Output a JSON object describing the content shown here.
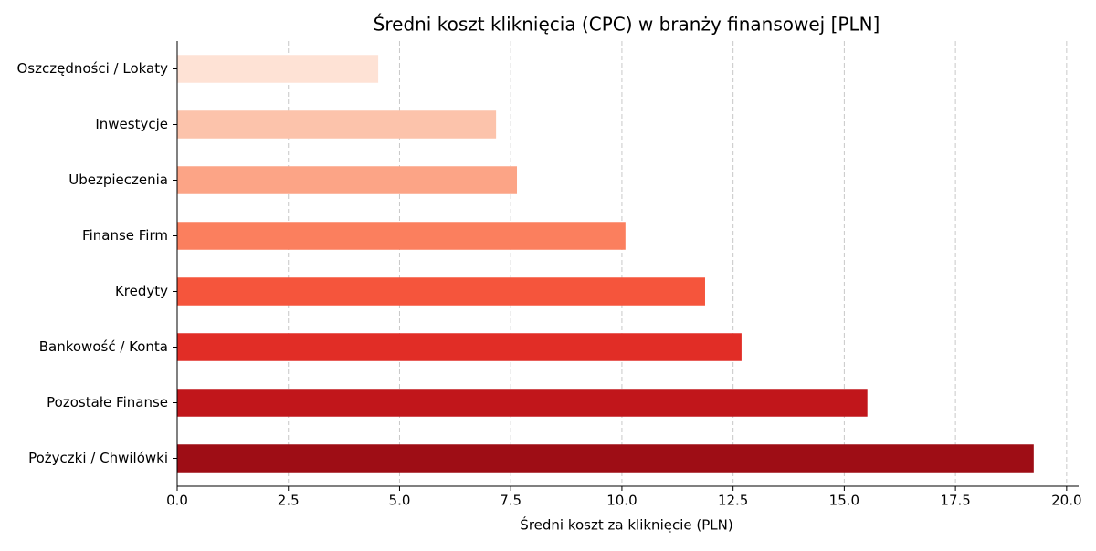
{
  "chart_data": {
    "type": "barh",
    "title": "Średni koszt kliknięcia (CPC) w branży finansowej [PLN]",
    "x_label": "Średni koszt za kliknięcie (PLN)",
    "categories": [
      "Oszczędności / Lokaty",
      "Inwestycje",
      "Ubezpieczenia",
      "Finanse Firm",
      "Kredyty",
      "Bankowość / Konta",
      "Pozostałe Finanse",
      "Pożyczki / Chwilówki"
    ],
    "values": [
      4.52,
      7.17,
      7.64,
      10.08,
      11.87,
      12.69,
      15.52,
      19.26
    ],
    "colors": [
      "#fee2d5",
      "#fcc3ab",
      "#fca486",
      "#fb7f5e",
      "#f5553c",
      "#e12d26",
      "#c1161b",
      "#9e0d15"
    ],
    "xlim": [
      0,
      20.27
    ],
    "xticks": [
      {
        "value": 0,
        "label": "0.0"
      },
      2.5,
      {
        "value": 5,
        "label": "5.0"
      },
      7.5,
      {
        "value": 10,
        "label": "10.0"
      },
      12.5,
      {
        "value": 15,
        "label": "15.0"
      },
      17.5,
      {
        "value": 20,
        "label": "20.0"
      }
    ],
    "grid": true
  }
}
